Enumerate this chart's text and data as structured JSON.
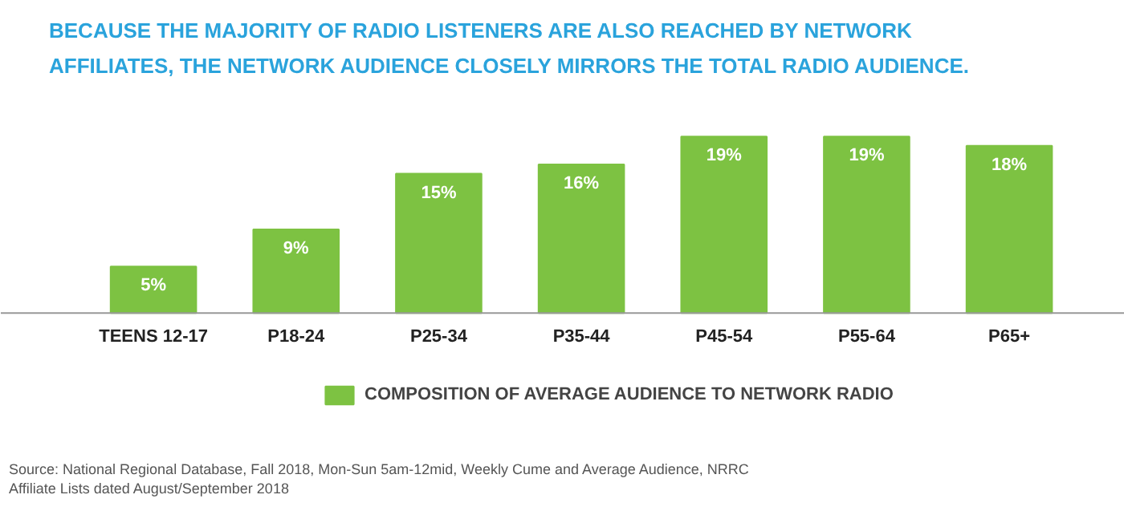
{
  "chart_data": {
    "type": "bar",
    "title": "BECAUSE THE MAJORITY OF RADIO LISTENERS ARE ALSO REACHED BY NETWORK AFFILIATES, THE NETWORK AUDIENCE CLOSELY MIRRORS THE TOTAL RADIO AUDIENCE.",
    "categories": [
      "TEENS 12-17",
      "P18-24",
      "P25-34",
      "P35-44",
      "P45-54",
      "P55-64",
      "P65+"
    ],
    "series": [
      {
        "name": "COMPOSITION OF AVERAGE AUDIENCE TO NETWORK RADIO",
        "color": "#7dc242",
        "values": [
          5,
          9,
          15,
          16,
          19,
          19,
          18
        ],
        "value_labels": [
          "5%",
          "9%",
          "15%",
          "16%",
          "19%",
          "19%",
          "18%"
        ]
      }
    ],
    "legend": "bottom",
    "annotations": [
      "Source: National Regional Database, Fall 2018, Mon-Sun 5am-12mid, Weekly Cume and Average Audience, NRRC Affiliate Lists dated August/September 2018"
    ]
  }
}
